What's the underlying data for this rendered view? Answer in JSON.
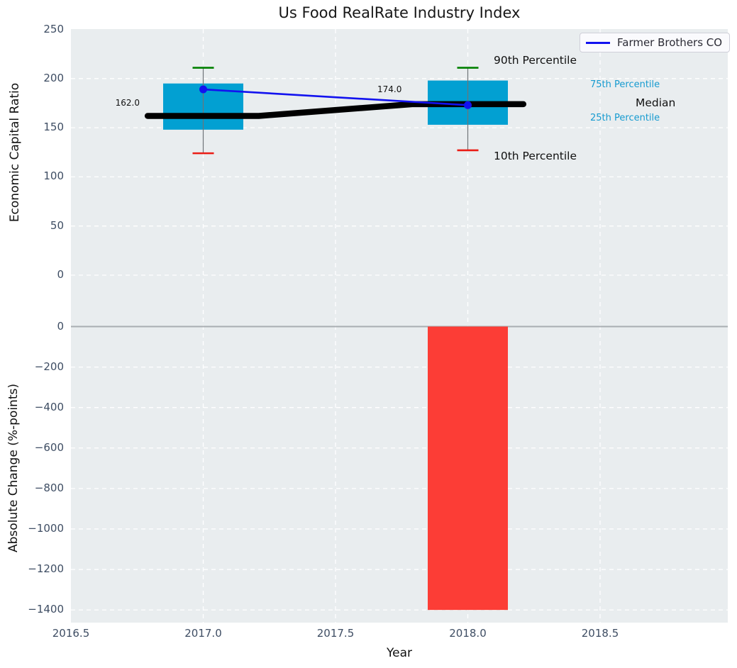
{
  "title": "Us Food RealRate Industry Index",
  "legend": {
    "label": "Farmer Brothers CO"
  },
  "x_axis": {
    "label": "Year",
    "ticks": [
      "2016.5",
      "2017.0",
      "2017.5",
      "2018.0",
      "2018.5"
    ],
    "tick_values": [
      2016.5,
      2017.0,
      2017.5,
      2018.0,
      2018.5
    ],
    "xlim": [
      2016.5,
      2018.98
    ]
  },
  "chart_data": [
    {
      "type": "box-percentile-with-line",
      "title": "Us Food RealRate Industry Index",
      "ylabel": "Economic Capital Ratio",
      "yticks": [
        250,
        200,
        150,
        100,
        50,
        0
      ],
      "ylim": [
        -27,
        250
      ],
      "grid": "white dashed on light gray",
      "legend_position": "upper right",
      "x": [
        2017,
        2018
      ],
      "percentiles": {
        "p90": [
          211,
          211
        ],
        "p75": [
          195,
          198
        ],
        "median": [
          162,
          174
        ],
        "p25": [
          148,
          153
        ],
        "p10": [
          124,
          127
        ]
      },
      "median_value_labels": [
        "162.0",
        "174.0"
      ],
      "series": [
        {
          "name": "Farmer Brothers CO",
          "values": [
            189,
            173
          ]
        }
      ]
    },
    {
      "type": "bar",
      "ylabel": "Absolute Change (%-points)",
      "yticks": [
        0,
        -200,
        -400,
        -600,
        -800,
        -1000,
        -1200,
        -1400
      ],
      "ylim": [
        -1463,
        124
      ],
      "x": [
        2018
      ],
      "values": [
        -1400
      ],
      "zero_line": true
    }
  ],
  "annotations": {
    "percentile_guide": [
      {
        "text": "90th Percentile",
        "style": "major"
      },
      {
        "text": "75th Percentile",
        "style": "minor"
      },
      {
        "text": "Median",
        "style": "major"
      },
      {
        "text": "25th Percentile",
        "style": "minor"
      },
      {
        "text": "10th Percentile",
        "style": "major"
      }
    ]
  },
  "colors": {
    "box_fill": "#02a0d2",
    "bar_negative": "#fc3d36",
    "company_line": "#1212ef",
    "median_line": "#000000",
    "cap_high": "#008000",
    "cap_low": "#ea1c15",
    "whisker": "#6f7478",
    "panel_bg": "#e9edef",
    "grid": "#ffffff",
    "zero_line": "#a9aeb2",
    "tick_label": "#3e4d63",
    "annotation_minor": "#169bd0"
  }
}
